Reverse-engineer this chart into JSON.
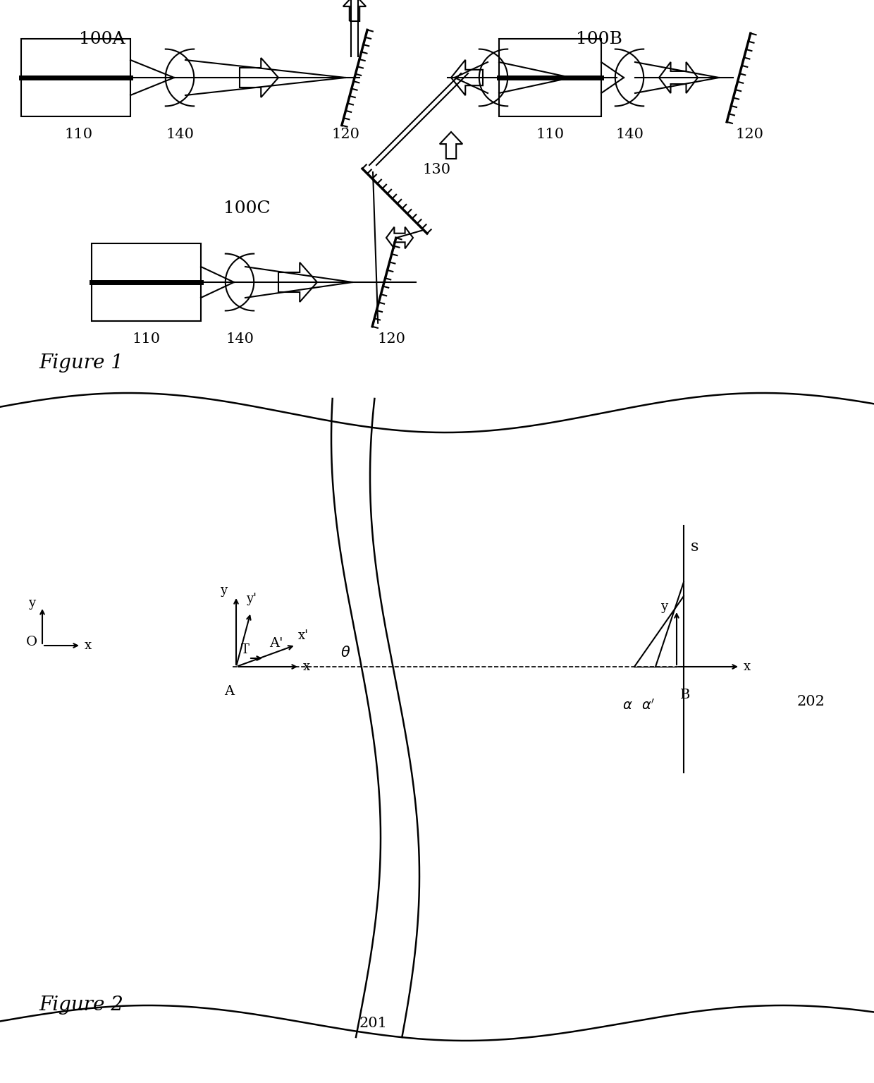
{
  "fig_width": 12.4,
  "fig_height": 15.35,
  "bg_color": "#ffffff",
  "line_color": "#000000",
  "label_100A": "100A",
  "label_100B": "100B",
  "label_100C": "100C",
  "label_fig1": "Figure 1",
  "label_fig2": "Figure 2",
  "label_201": "201",
  "label_202": "202"
}
